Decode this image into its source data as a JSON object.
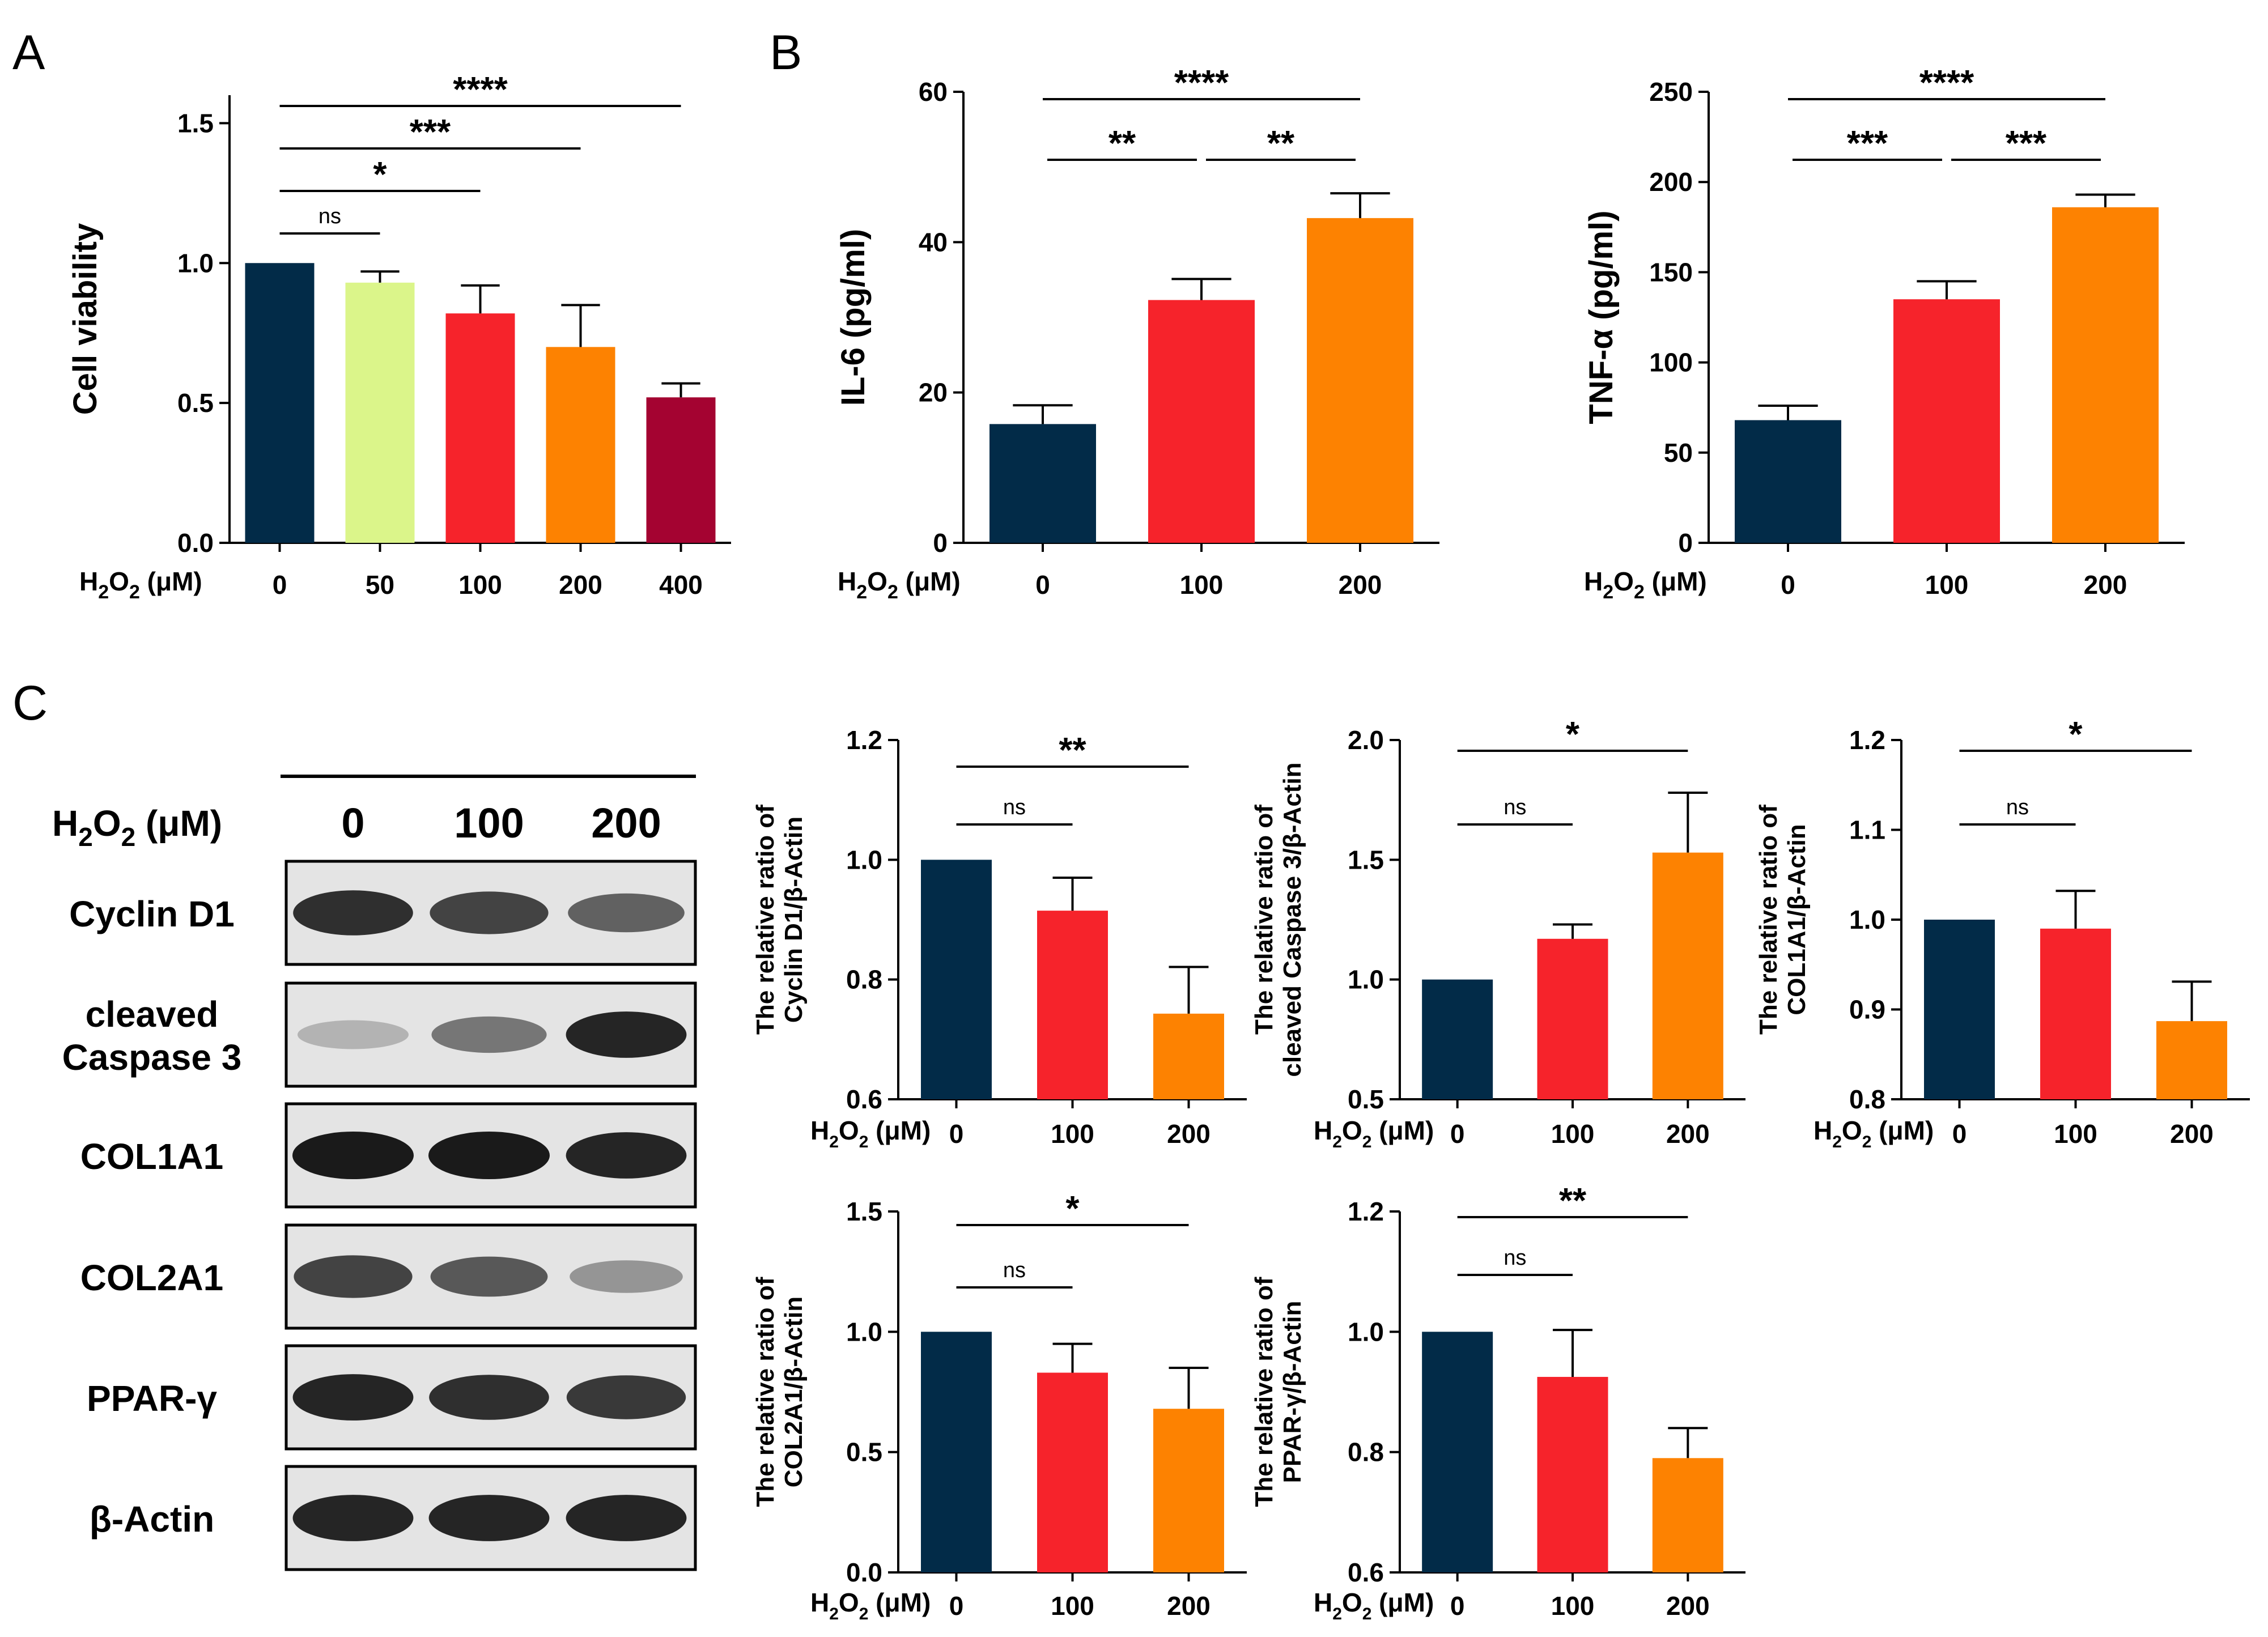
{
  "panels": {
    "A": "A",
    "B": "B",
    "C": "C"
  },
  "xaxis_prefix": {
    "base": "H",
    "sub1": "2",
    "mid": "O",
    "sub2": "2",
    "unit": " (μM)"
  },
  "colors": {
    "c0": "#022b48",
    "c50": "#dbf58a",
    "c100": "#f6232b",
    "c200": "#fd8201",
    "c400": "#a40331"
  },
  "blot": {
    "header_values": [
      "0",
      "100",
      "200"
    ],
    "rows": [
      {
        "label_lines": [
          "Cyclin D1"
        ],
        "intensity": [
          0.9,
          0.8,
          0.65
        ]
      },
      {
        "label_lines": [
          "cleaved",
          "Caspase 3"
        ],
        "intensity": [
          0.25,
          0.55,
          0.95
        ]
      },
      {
        "label_lines": [
          "COL1A1"
        ],
        "intensity": [
          1.0,
          1.0,
          0.95
        ]
      },
      {
        "label_lines": [
          "COL2A1"
        ],
        "intensity": [
          0.8,
          0.7,
          0.4
        ]
      },
      {
        "label_lines": [
          "PPAR-γ"
        ],
        "intensity": [
          0.95,
          0.9,
          0.85
        ]
      },
      {
        "label_lines": [
          "β-Actin"
        ],
        "intensity": [
          0.95,
          0.95,
          0.95
        ]
      }
    ]
  },
  "chart_data": [
    {
      "id": "A",
      "type": "bar",
      "categories": [
        "0",
        "50",
        "100",
        "200",
        "400"
      ],
      "values": [
        1.0,
        0.93,
        0.82,
        0.7,
        0.52
      ],
      "errors": [
        0,
        0.04,
        0.1,
        0.15,
        0.05
      ],
      "colors": [
        "#022b48",
        "#dbf58a",
        "#f6232b",
        "#fd8201",
        "#a40331"
      ],
      "ylabel_lines": [
        "Cell viability"
      ],
      "ylim": [
        0,
        1.6
      ],
      "yticks": [
        0.0,
        0.5,
        1.0,
        1.5
      ],
      "ytick_labels": [
        "0.0",
        "0.5",
        "1.0",
        "1.5"
      ],
      "significance": [
        {
          "from": 0,
          "to": 1,
          "label": "ns"
        },
        {
          "from": 0,
          "to": 2,
          "label": "*"
        },
        {
          "from": 0,
          "to": 3,
          "label": "***"
        },
        {
          "from": 0,
          "to": 4,
          "label": "****"
        }
      ]
    },
    {
      "id": "B1",
      "type": "bar",
      "categories": [
        "0",
        "100",
        "200"
      ],
      "values": [
        15.8,
        32.3,
        43.2
      ],
      "errors": [
        2.5,
        2.8,
        3.3
      ],
      "colors": [
        "#022b48",
        "#f6232b",
        "#fd8201"
      ],
      "ylabel_lines": [
        "IL-6 (pg/ml)"
      ],
      "ylim": [
        0,
        60
      ],
      "yticks": [
        0,
        20,
        40,
        60
      ],
      "ytick_labels": [
        "0",
        "20",
        "40",
        "60"
      ],
      "significance": [
        {
          "from": 0,
          "to": 1,
          "label": "**"
        },
        {
          "from": 1,
          "to": 2,
          "label": "**"
        },
        {
          "from": 0,
          "to": 2,
          "label": "****"
        }
      ]
    },
    {
      "id": "B2",
      "type": "bar",
      "categories": [
        "0",
        "100",
        "200"
      ],
      "values": [
        68,
        135,
        186
      ],
      "errors": [
        8,
        10,
        7
      ],
      "colors": [
        "#022b48",
        "#f6232b",
        "#fd8201"
      ],
      "ylabel_lines": [
        "TNF-α (pg/ml)"
      ],
      "ylim": [
        0,
        250
      ],
      "yticks": [
        0,
        50,
        100,
        150,
        200,
        250
      ],
      "ytick_labels": [
        "0",
        "50",
        "100",
        "150",
        "200",
        "250"
      ],
      "significance": [
        {
          "from": 0,
          "to": 1,
          "label": "***"
        },
        {
          "from": 1,
          "to": 2,
          "label": "***"
        },
        {
          "from": 0,
          "to": 2,
          "label": "****"
        }
      ]
    },
    {
      "id": "C1",
      "type": "bar",
      "categories": [
        "0",
        "100",
        "200"
      ],
      "values": [
        1.0,
        0.915,
        0.743
      ],
      "errors": [
        0,
        0.055,
        0.078
      ],
      "colors": [
        "#022b48",
        "#f6232b",
        "#fd8201"
      ],
      "ylabel_lines": [
        "The relative ratio of",
        "Cyclin D1/β-Actin"
      ],
      "ylim": [
        0.6,
        1.2
      ],
      "yticks": [
        0.6,
        0.8,
        1.0,
        1.2
      ],
      "ytick_labels": [
        "0.6",
        "0.8",
        "1.0",
        "1.2"
      ],
      "significance": [
        {
          "from": 0,
          "to": 1,
          "label": "ns"
        },
        {
          "from": 0,
          "to": 2,
          "label": "**"
        }
      ]
    },
    {
      "id": "C2",
      "type": "bar",
      "categories": [
        "0",
        "100",
        "200"
      ],
      "values": [
        1.0,
        1.17,
        1.53
      ],
      "errors": [
        0,
        0.06,
        0.25
      ],
      "colors": [
        "#022b48",
        "#f6232b",
        "#fd8201"
      ],
      "ylabel_lines": [
        "The relative ratio of",
        "cleaved Caspase 3/β-Actin"
      ],
      "ylim": [
        0.5,
        2.0
      ],
      "yticks": [
        0.5,
        1.0,
        1.5,
        2.0
      ],
      "ytick_labels": [
        "0.5",
        "1.0",
        "1.5",
        "2.0"
      ],
      "significance": [
        {
          "from": 0,
          "to": 1,
          "label": "ns"
        },
        {
          "from": 0,
          "to": 2,
          "label": "*"
        }
      ]
    },
    {
      "id": "C3",
      "type": "bar",
      "categories": [
        "0",
        "100",
        "200"
      ],
      "values": [
        1.0,
        0.99,
        0.887
      ],
      "errors": [
        0,
        0.042,
        0.044
      ],
      "colors": [
        "#022b48",
        "#f6232b",
        "#fd8201"
      ],
      "ylabel_lines": [
        "The relative ratio of",
        "COL1A1/β-Actin"
      ],
      "ylim": [
        0.8,
        1.2
      ],
      "yticks": [
        0.8,
        0.9,
        1.0,
        1.1,
        1.2
      ],
      "ytick_labels": [
        "0.8",
        "0.9",
        "1.0",
        "1.1",
        "1.2"
      ],
      "significance": [
        {
          "from": 0,
          "to": 1,
          "label": "ns"
        },
        {
          "from": 0,
          "to": 2,
          "label": "*"
        }
      ]
    },
    {
      "id": "C4",
      "type": "bar",
      "categories": [
        "0",
        "100",
        "200"
      ],
      "values": [
        1.0,
        0.83,
        0.68
      ],
      "errors": [
        0,
        0.12,
        0.17
      ],
      "colors": [
        "#022b48",
        "#f6232b",
        "#fd8201"
      ],
      "ylabel_lines": [
        "The relative ratio of",
        "COL2A1/β-Actin"
      ],
      "ylim": [
        0.0,
        1.5
      ],
      "yticks": [
        0.0,
        0.5,
        1.0,
        1.5
      ],
      "ytick_labels": [
        "0.0",
        "0.5",
        "1.0",
        "1.5"
      ],
      "significance": [
        {
          "from": 0,
          "to": 1,
          "label": "ns"
        },
        {
          "from": 0,
          "to": 2,
          "label": "*"
        }
      ]
    },
    {
      "id": "C5",
      "type": "bar",
      "categories": [
        "0",
        "100",
        "200"
      ],
      "values": [
        1.0,
        0.925,
        0.79
      ],
      "errors": [
        0,
        0.078,
        0.05
      ],
      "colors": [
        "#022b48",
        "#f6232b",
        "#fd8201"
      ],
      "ylabel_lines": [
        "The relative ratio of",
        "PPAR-γ/β-Actin"
      ],
      "ylim": [
        0.6,
        1.2
      ],
      "yticks": [
        0.6,
        0.8,
        1.0,
        1.2
      ],
      "ytick_labels": [
        "0.6",
        "0.8",
        "1.0",
        "1.2"
      ],
      "significance": [
        {
          "from": 0,
          "to": 1,
          "label": "ns"
        },
        {
          "from": 0,
          "to": 2,
          "label": "**"
        }
      ]
    }
  ]
}
